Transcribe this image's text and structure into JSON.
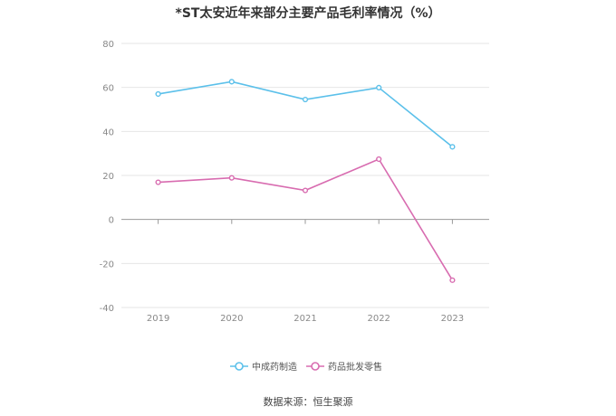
{
  "chart_data": {
    "type": "line",
    "title": "*ST太安近年来部分主要产品毛利率情况（%）",
    "categories": [
      "2019",
      "2020",
      "2021",
      "2022",
      "2023"
    ],
    "series": [
      {
        "name": "中成药制造",
        "color": "#5bc0ea",
        "values": [
          57.0,
          62.6,
          54.5,
          59.9,
          33.0
        ]
      },
      {
        "name": "药品批发零售",
        "color": "#d86cb0",
        "values": [
          16.9,
          18.9,
          13.2,
          27.4,
          -27.6
        ]
      }
    ],
    "ylim": [
      -40,
      80
    ],
    "yticks": [
      80,
      60,
      40,
      20,
      0,
      -20,
      -40
    ],
    "grid": true,
    "legend_position": "bottom",
    "source": "数据来源：恒生聚源"
  }
}
